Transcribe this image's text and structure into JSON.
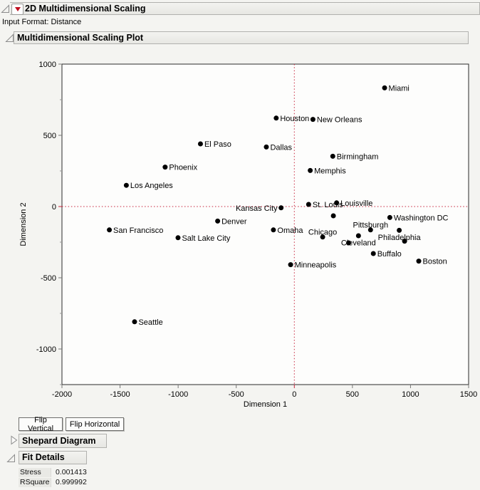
{
  "report": {
    "title": "2D Multidimensional Scaling",
    "input_format": "Input Format: Distance",
    "plot_section": "Multidimensional Scaling Plot",
    "shepard_section": "Shepard Diagram",
    "fit_section": "Fit Details",
    "buttons": {
      "flip_vertical": "Flip Vertical",
      "flip_horizontal": "Flip Horizontal"
    },
    "fit_details": {
      "rows": [
        {
          "label": "Stress",
          "value": "0.001413"
        },
        {
          "label": "RSquare",
          "value": "0.999992"
        }
      ]
    }
  },
  "icons": {
    "red_triangle_menu": "red filled down-triangle in bordered box",
    "disclosure_expanded": "gray outlined right-angle triangle",
    "disclosure_collapsed": "gray outlined right-pointing triangle",
    "marker": "filled black circle"
  },
  "colors": {
    "page_bg": "#f4f4f1",
    "plot_bg": "#fdfdfc",
    "header_bg": "#ebebe8",
    "reference_line": "#c8243c",
    "marker": "#000000",
    "frame": "#2a2a2a"
  },
  "chart_data": {
    "type": "scatter",
    "title": "",
    "xlabel": "Dimension 1",
    "ylabel": "Dimension 2",
    "xlim": [
      -2000,
      1500
    ],
    "ylim": [
      -1250,
      1000
    ],
    "x_ticks": [
      -2000,
      -1500,
      -1000,
      -500,
      0,
      500,
      1000,
      1500
    ],
    "y_ticks": [
      1000,
      500,
      0,
      -500,
      -1000
    ],
    "y_minor_tick_step": 250,
    "grid": false,
    "legend": "none",
    "reference_lines": {
      "vertical_at_x": 0,
      "horizontal_at_y": 0,
      "style": "dotted"
    },
    "points": [
      {
        "label": "Miami",
        "x": 777,
        "y": 833,
        "label_pos": "right"
      },
      {
        "label": "Houston",
        "x": -156,
        "y": 621,
        "label_pos": "right"
      },
      {
        "label": "New Orleans",
        "x": 160,
        "y": 612,
        "label_pos": "right"
      },
      {
        "label": "El Paso",
        "x": -808,
        "y": 440,
        "label_pos": "right"
      },
      {
        "label": "Dallas",
        "x": -241,
        "y": 418,
        "label_pos": "right"
      },
      {
        "label": "Birmingham",
        "x": 331,
        "y": 353,
        "label_pos": "right"
      },
      {
        "label": "Phoenix",
        "x": -1112,
        "y": 277,
        "label_pos": "right"
      },
      {
        "label": "Memphis",
        "x": 137,
        "y": 253,
        "label_pos": "right"
      },
      {
        "label": "Los Angeles",
        "x": -1446,
        "y": 149,
        "label_pos": "right"
      },
      {
        "label": "Louisville",
        "x": 364,
        "y": 26,
        "label_pos": "right"
      },
      {
        "label": "St. Louis",
        "x": 123,
        "y": 15,
        "label_pos": "right"
      },
      {
        "label": "Kansas City",
        "x": -114,
        "y": -9,
        "label_pos": "left"
      },
      {
        "label": "",
        "x": 336,
        "y": -65,
        "label_pos": "none"
      },
      {
        "label": "Washington DC",
        "x": 822,
        "y": -77,
        "label_pos": "right"
      },
      {
        "label": "Denver",
        "x": -660,
        "y": -102,
        "label_pos": "right"
      },
      {
        "label": "Omaha",
        "x": -180,
        "y": -164,
        "label_pos": "right"
      },
      {
        "label": "San Francisco",
        "x": -1592,
        "y": -164,
        "label_pos": "right"
      },
      {
        "label": "Pittsburgh",
        "x": 656,
        "y": -164,
        "label_pos": "above"
      },
      {
        "label": "Philadelphia",
        "x": 903,
        "y": -167,
        "label_pos": "below"
      },
      {
        "label": "Cleveland",
        "x": 552,
        "y": -205,
        "label_pos": "below"
      },
      {
        "label": "Chicago",
        "x": 244,
        "y": -214,
        "label_pos": "above"
      },
      {
        "label": "Salt Lake City",
        "x": -1001,
        "y": -219,
        "label_pos": "right"
      },
      {
        "label": "",
        "x": 949,
        "y": -243,
        "label_pos": "none"
      },
      {
        "label": "",
        "x": 467,
        "y": -255,
        "label_pos": "none"
      },
      {
        "label": "Buffalo",
        "x": 680,
        "y": -330,
        "label_pos": "right"
      },
      {
        "label": "Boston",
        "x": 1071,
        "y": -383,
        "label_pos": "right"
      },
      {
        "label": "Minneapolis",
        "x": -32,
        "y": -408,
        "label_pos": "right"
      },
      {
        "label": "Seattle",
        "x": -1375,
        "y": -809,
        "label_pos": "right"
      }
    ]
  }
}
